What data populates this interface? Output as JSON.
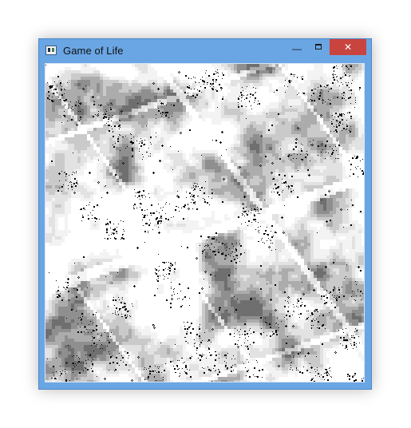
{
  "window": {
    "title": "Game of Life",
    "controls": {
      "minimize_glyph": "—",
      "maximize_glyph": "☐",
      "close_glyph": "✕"
    }
  },
  "simulation": {
    "cell_colors": {
      "alive": "#000000",
      "dead": "#ffffff",
      "trail": [
        "#f3f3f3",
        "#e2e2e2",
        "#cacaca",
        "#acacac",
        "#8f8f8f",
        "#6f6f6f"
      ]
    }
  }
}
